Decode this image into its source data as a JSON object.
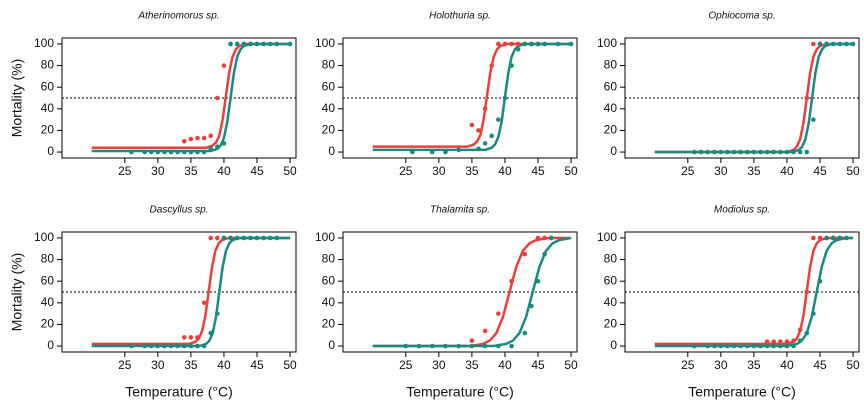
{
  "chart_data": [
    {
      "type": "scatter",
      "title": "Atherinomorus sp.",
      "ylabel": "Mortality (%)",
      "xlim": [
        15.5,
        50.9
      ],
      "ylim": [
        -5.5,
        105.5
      ],
      "xticks": [
        25,
        30,
        35,
        40,
        45,
        50
      ],
      "yticks": [
        0,
        20,
        40,
        60,
        80,
        100
      ],
      "hline": 50,
      "series": [
        {
          "color": "#e8413c",
          "x": [
            34,
            35,
            36,
            37,
            38,
            39,
            40,
            41,
            42,
            43,
            44
          ],
          "values": [
            10,
            12,
            13,
            13,
            15,
            50,
            80,
            100,
            100,
            100,
            100
          ]
        },
        {
          "color": "#1a8a80",
          "x": [
            26,
            28,
            29,
            30,
            31,
            32,
            33,
            34,
            35,
            36,
            37,
            38,
            39,
            40,
            41,
            42,
            43,
            44,
            45,
            46,
            47,
            48,
            50
          ],
          "values": [
            0,
            0,
            0,
            0,
            0,
            0,
            0,
            0,
            0,
            0,
            0,
            3,
            5,
            8,
            100,
            100,
            100,
            100,
            100,
            100,
            100,
            100,
            100
          ]
        }
      ],
      "fit_series": [
        {
          "color": "#e8413c",
          "x": [
            20,
            37.3,
            38.3,
            38.8,
            39.3,
            39.8,
            40.3,
            40.8,
            41.3,
            41.8,
            42.3,
            43.3,
            50
          ],
          "values": [
            4,
            4,
            6,
            9,
            15,
            30,
            52,
            74,
            88,
            95,
            98,
            100,
            100
          ]
        },
        {
          "color": "#1a8a80",
          "x": [
            20,
            38,
            39,
            39.5,
            40,
            40.5,
            41,
            41.5,
            42,
            42.5,
            43,
            44,
            50
          ],
          "values": [
            1,
            1,
            3,
            6,
            13,
            28,
            50,
            73,
            88,
            95,
            98,
            100,
            100
          ]
        }
      ]
    },
    {
      "type": "scatter",
      "title": "Holothuria sp.",
      "xlim": [
        15.5,
        50.9
      ],
      "ylim": [
        -5.5,
        105.5
      ],
      "xticks": [
        25,
        30,
        35,
        40,
        45,
        50
      ],
      "yticks": [
        0,
        20,
        40,
        60,
        80,
        100
      ],
      "hline": 50,
      "series": [
        {
          "color": "#e8413c",
          "x": [
            35,
            36,
            37,
            38,
            39,
            40,
            41,
            42,
            43,
            44,
            45
          ],
          "values": [
            25,
            20,
            40,
            80,
            100,
            100,
            100,
            100,
            100,
            100,
            100
          ]
        },
        {
          "color": "#1a8a80",
          "x": [
            26,
            29,
            31,
            33,
            36,
            37,
            38,
            39,
            40,
            41,
            42,
            43,
            44,
            45,
            46,
            48,
            50
          ],
          "values": [
            0,
            0,
            0,
            2,
            3,
            8,
            15,
            30,
            50,
            80,
            95,
            100,
            100,
            100,
            100,
            100,
            100
          ]
        }
      ],
      "fit_series": [
        {
          "color": "#e8413c",
          "x": [
            20,
            34.3,
            35.3,
            35.8,
            36.3,
            36.8,
            37.3,
            37.8,
            38.3,
            38.8,
            39.3,
            40.3,
            50
          ],
          "values": [
            5,
            5,
            7,
            10,
            16,
            31,
            53,
            74,
            88,
            95,
            98,
            100,
            100
          ]
        },
        {
          "color": "#1a8a80",
          "x": [
            20,
            37,
            38,
            38.5,
            39,
            39.5,
            40,
            40.5,
            41,
            41.5,
            42,
            43,
            50
          ],
          "values": [
            2,
            2,
            4,
            7,
            14,
            28,
            51,
            73,
            88,
            95,
            98,
            100,
            100
          ]
        }
      ]
    },
    {
      "type": "scatter",
      "title": "Ophiocoma sp.",
      "xlim": [
        15.5,
        50.9
      ],
      "ylim": [
        -5.5,
        105.5
      ],
      "xticks": [
        25,
        30,
        35,
        40,
        45,
        50
      ],
      "yticks": [
        0,
        20,
        40,
        60,
        80,
        100
      ],
      "hline": 50,
      "series": [
        {
          "color": "#e8413c",
          "x": [
            43,
            44,
            45,
            46
          ],
          "values": [
            50,
            100,
            100,
            100
          ]
        },
        {
          "color": "#1a8a80",
          "x": [
            26,
            27,
            28,
            29,
            30,
            31,
            32,
            33,
            34,
            35,
            36,
            37,
            38,
            39,
            40,
            41,
            42,
            43,
            44,
            45,
            46,
            47,
            48,
            49,
            50
          ],
          "values": [
            0,
            0,
            0,
            0,
            0,
            0,
            0,
            0,
            0,
            0,
            0,
            0,
            0,
            0,
            0,
            0,
            0,
            0,
            30,
            100,
            100,
            100,
            100,
            100,
            100
          ]
        }
      ],
      "fit_series": [
        {
          "color": "#e8413c",
          "x": [
            20,
            40,
            41,
            41.5,
            42,
            42.5,
            43,
            43.5,
            44,
            44.5,
            45,
            46,
            50
          ],
          "values": [
            0,
            0,
            2,
            5,
            12,
            27,
            50,
            73,
            88,
            95,
            98,
            100,
            100
          ]
        },
        {
          "color": "#1a8a80",
          "x": [
            20,
            40.8,
            41.8,
            42.3,
            42.8,
            43.3,
            43.8,
            44.3,
            44.8,
            45.3,
            45.8,
            46.8,
            50
          ],
          "values": [
            0,
            0,
            2,
            5,
            12,
            27,
            50,
            73,
            88,
            95,
            98,
            100,
            100
          ]
        }
      ]
    },
    {
      "type": "scatter",
      "title": "Dascyllus sp.",
      "ylabel": "Mortality (%)",
      "xlabel": "Temperature (°C)",
      "xlim": [
        15.5,
        50.9
      ],
      "ylim": [
        -5.5,
        105.5
      ],
      "xticks": [
        25,
        30,
        35,
        40,
        45,
        50
      ],
      "yticks": [
        0,
        20,
        40,
        60,
        80,
        100
      ],
      "hline": 50,
      "series": [
        {
          "color": "#e8413c",
          "x": [
            34,
            35,
            36,
            37,
            38,
            39,
            40,
            41
          ],
          "values": [
            8,
            8,
            8,
            40,
            100,
            100,
            100,
            100
          ]
        },
        {
          "color": "#1a8a80",
          "x": [
            26,
            28,
            29,
            30,
            31,
            32,
            33,
            34,
            35,
            36,
            37,
            38,
            39,
            40,
            41,
            42,
            43,
            44,
            45,
            46,
            47,
            48
          ],
          "values": [
            0,
            0,
            0,
            0,
            0,
            0,
            0,
            0,
            0,
            0,
            0,
            12,
            30,
            100,
            100,
            100,
            100,
            100,
            100,
            100,
            100,
            100
          ]
        }
      ],
      "fit_series": [
        {
          "color": "#e8413c",
          "x": [
            20,
            34.7,
            35.7,
            36.2,
            36.7,
            37.2,
            37.7,
            38.2,
            38.7,
            39.2,
            39.7,
            40.7,
            50
          ],
          "values": [
            2,
            2,
            4,
            7,
            14,
            28,
            51,
            73,
            88,
            95,
            98,
            100,
            100
          ]
        },
        {
          "color": "#1a8a80",
          "x": [
            20,
            36.3,
            37.3,
            37.8,
            38.3,
            38.8,
            39.3,
            39.8,
            40.3,
            40.8,
            41.3,
            42.3,
            50
          ],
          "values": [
            0,
            0,
            2,
            5,
            12,
            27,
            50,
            73,
            88,
            95,
            98,
            100,
            100
          ]
        }
      ]
    },
    {
      "type": "scatter",
      "title": "Thalamita sp.",
      "xlabel": "Temperature (°C)",
      "xlim": [
        15.5,
        50.9
      ],
      "ylim": [
        -5.5,
        105.5
      ],
      "xticks": [
        25,
        30,
        35,
        40,
        45,
        50
      ],
      "yticks": [
        0,
        20,
        40,
        60,
        80,
        100
      ],
      "hline": 50,
      "series": [
        {
          "color": "#e8413c",
          "x": [
            35,
            37,
            39,
            41,
            43,
            45,
            46,
            47
          ],
          "values": [
            5,
            14,
            30,
            60,
            85,
            100,
            100,
            100
          ]
        },
        {
          "color": "#1a8a80",
          "x": [
            25,
            27,
            29,
            31,
            33,
            35,
            37,
            39,
            41,
            43,
            44,
            45,
            46,
            47
          ],
          "values": [
            0,
            0,
            0,
            0,
            0,
            0,
            0,
            0,
            0,
            12,
            37,
            60,
            85,
            100
          ]
        }
      ],
      "fit_series": [
        {
          "color": "#e8413c",
          "x": [
            20,
            34.7,
            36.7,
            37.7,
            38.7,
            39.7,
            40.7,
            41.7,
            42.7,
            43.7,
            44.7,
            46.7,
            50
          ],
          "values": [
            0,
            0,
            2,
            5,
            12,
            27,
            50,
            73,
            88,
            95,
            98,
            100,
            100
          ]
        },
        {
          "color": "#1a8a80",
          "x": [
            20,
            38.2,
            40.2,
            41.2,
            42.2,
            43.2,
            44.2,
            45.2,
            46.2,
            47.2,
            48.2,
            50
          ],
          "values": [
            0,
            0,
            2,
            5,
            12,
            27,
            50,
            73,
            88,
            95,
            98,
            100
          ]
        }
      ]
    },
    {
      "type": "scatter",
      "title": "Modiolus sp.",
      "xlabel": "Temperature (°C)",
      "xlim": [
        15.5,
        50.9
      ],
      "ylim": [
        -5.5,
        105.5
      ],
      "xticks": [
        25,
        30,
        35,
        40,
        45,
        50
      ],
      "yticks": [
        0,
        20,
        40,
        60,
        80,
        100
      ],
      "hline": 50,
      "series": [
        {
          "color": "#e8413c",
          "x": [
            37,
            38,
            39,
            40,
            41,
            42,
            43,
            44,
            45,
            46,
            47,
            48
          ],
          "values": [
            4,
            4,
            4,
            4,
            5,
            15,
            50,
            100,
            100,
            100,
            100,
            100
          ]
        },
        {
          "color": "#1a8a80",
          "x": [
            26,
            28,
            29,
            30,
            31,
            32,
            33,
            34,
            35,
            36,
            37,
            38,
            39,
            40,
            41,
            42,
            43,
            44,
            45,
            46,
            47,
            48,
            49
          ],
          "values": [
            0,
            0,
            0,
            0,
            0,
            0,
            0,
            0,
            0,
            0,
            0,
            0,
            0,
            0,
            0,
            5,
            12,
            30,
            60,
            100,
            100,
            100,
            100
          ]
        }
      ],
      "fit_series": [
        {
          "color": "#e8413c",
          "x": [
            20,
            40,
            41,
            41.5,
            42,
            42.5,
            43,
            43.5,
            44,
            44.5,
            45,
            46,
            50
          ],
          "values": [
            2,
            2,
            4,
            7,
            14,
            28,
            51,
            73,
            88,
            95,
            98,
            100,
            100
          ]
        },
        {
          "color": "#1a8a80",
          "x": [
            20,
            40,
            41.5,
            42.25,
            43,
            43.75,
            44.5,
            45.25,
            46,
            46.75,
            47.5,
            49,
            50
          ],
          "values": [
            0,
            0,
            2,
            5,
            12,
            27,
            50,
            73,
            88,
            95,
            98,
            100,
            100
          ]
        }
      ]
    }
  ]
}
